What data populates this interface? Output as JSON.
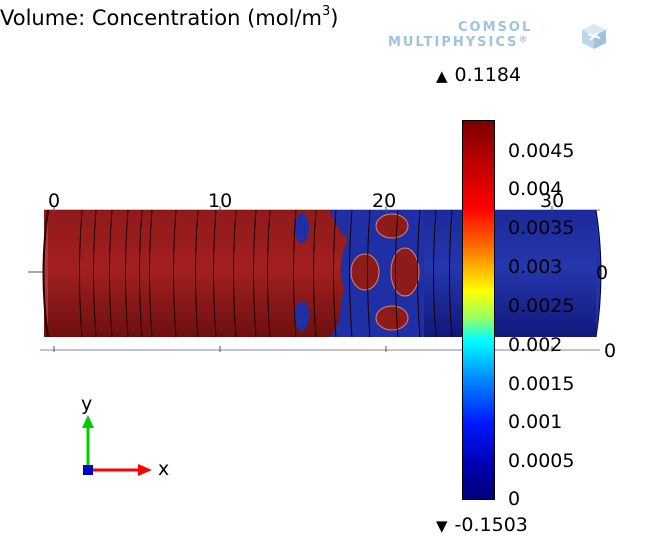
{
  "plot": {
    "title": "Volume: Concentration (mol/m",
    "title_sup": "3",
    "title_end": ")"
  },
  "logo": {
    "line1": "COMSOL",
    "line2": "MULTIPHYSICS",
    "registered": "®"
  },
  "range": {
    "max_marker": "0.1184",
    "min_marker": "-0.1503"
  },
  "colorbar": {
    "ticks": [
      "0.0045",
      "0.004",
      "0.0035",
      "0.003",
      "0.0025",
      "0.002",
      "0.0015",
      "0.001",
      "0.0005",
      "0"
    ],
    "colormap": "rainbow",
    "colors": {
      "high": "#7a0000",
      "mid": "#ffff00",
      "low": "#00007a"
    }
  },
  "axes": {
    "x_ticks": [
      "0",
      "10",
      "20",
      "30"
    ],
    "z_tick_right": "0",
    "y_tick_right": "0",
    "triad_x": "x",
    "triad_y": "y",
    "colors": {
      "x": "#ff0000",
      "y": "#00cc00",
      "z": "#0000cc"
    }
  }
}
